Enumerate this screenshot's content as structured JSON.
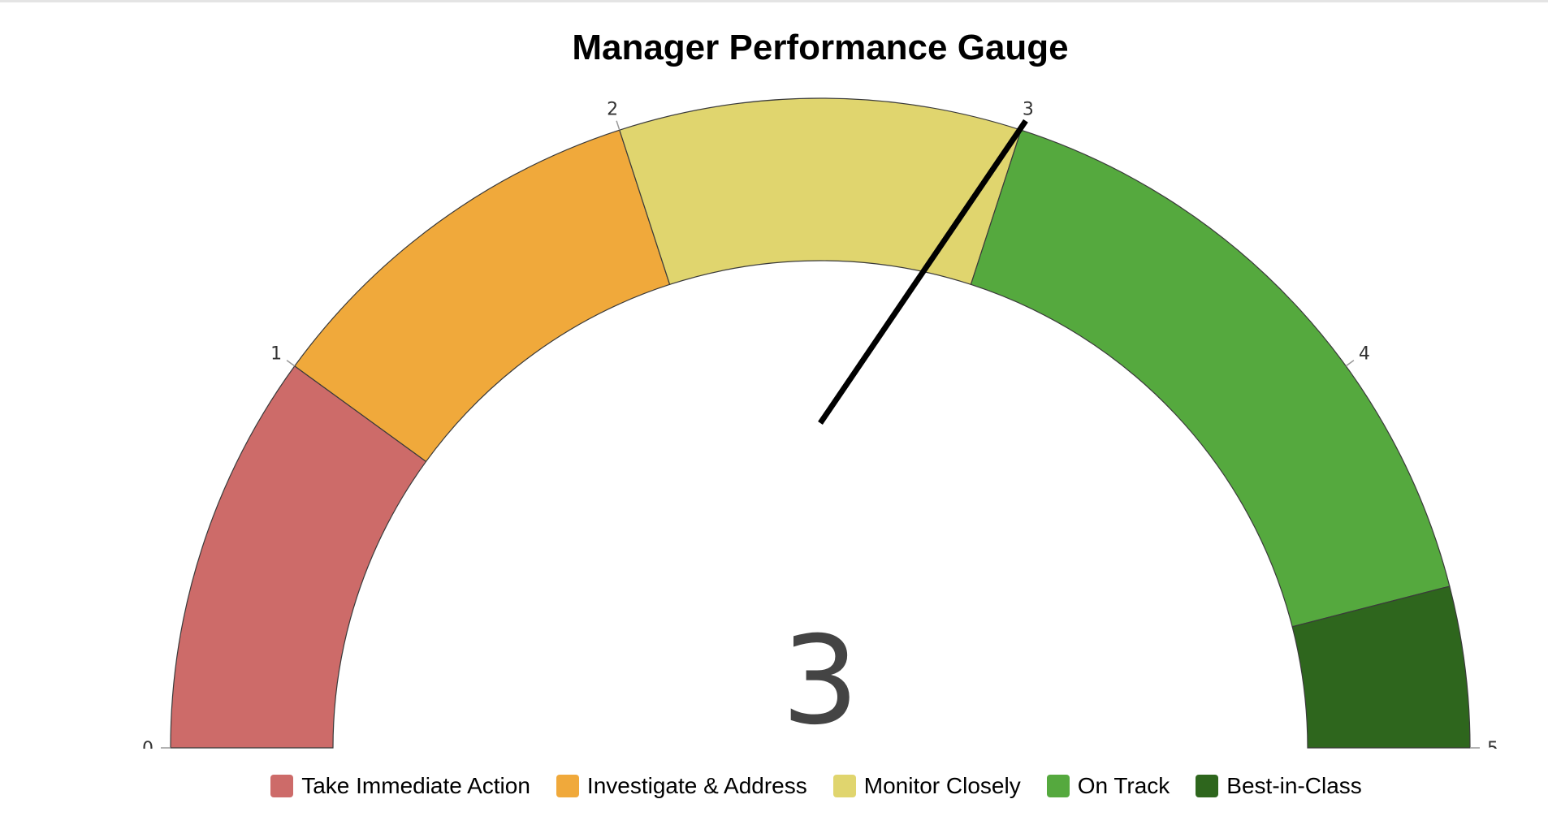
{
  "chart_data": {
    "type": "gauge",
    "title": "Manager Performance Gauge",
    "value": 3,
    "value_label": "3",
    "min": 0,
    "max": 5,
    "ticks": [
      {
        "value": 0,
        "label": "0"
      },
      {
        "value": 1,
        "label": "1"
      },
      {
        "value": 2,
        "label": "2"
      },
      {
        "value": 3,
        "label": "3"
      },
      {
        "value": 4,
        "label": "4"
      },
      {
        "value": 5,
        "label": "5"
      }
    ],
    "needle_value": 3.45,
    "bands": [
      {
        "name": "Take Immediate Action",
        "from": 0,
        "to": 1,
        "color": "#cd6b69"
      },
      {
        "name": "Investigate & Address",
        "from": 1,
        "to": 2,
        "color": "#f0a93b"
      },
      {
        "name": "Monitor Closely",
        "from": 2,
        "to": 3,
        "color": "#e0d56e"
      },
      {
        "name": "On Track",
        "from": 3,
        "to": 4.6,
        "color": "#55a93e"
      },
      {
        "name": "Best-in-Class",
        "from": 4.6,
        "to": 5,
        "color": "#2e661d"
      }
    ],
    "legend_position": "bottom-center"
  }
}
